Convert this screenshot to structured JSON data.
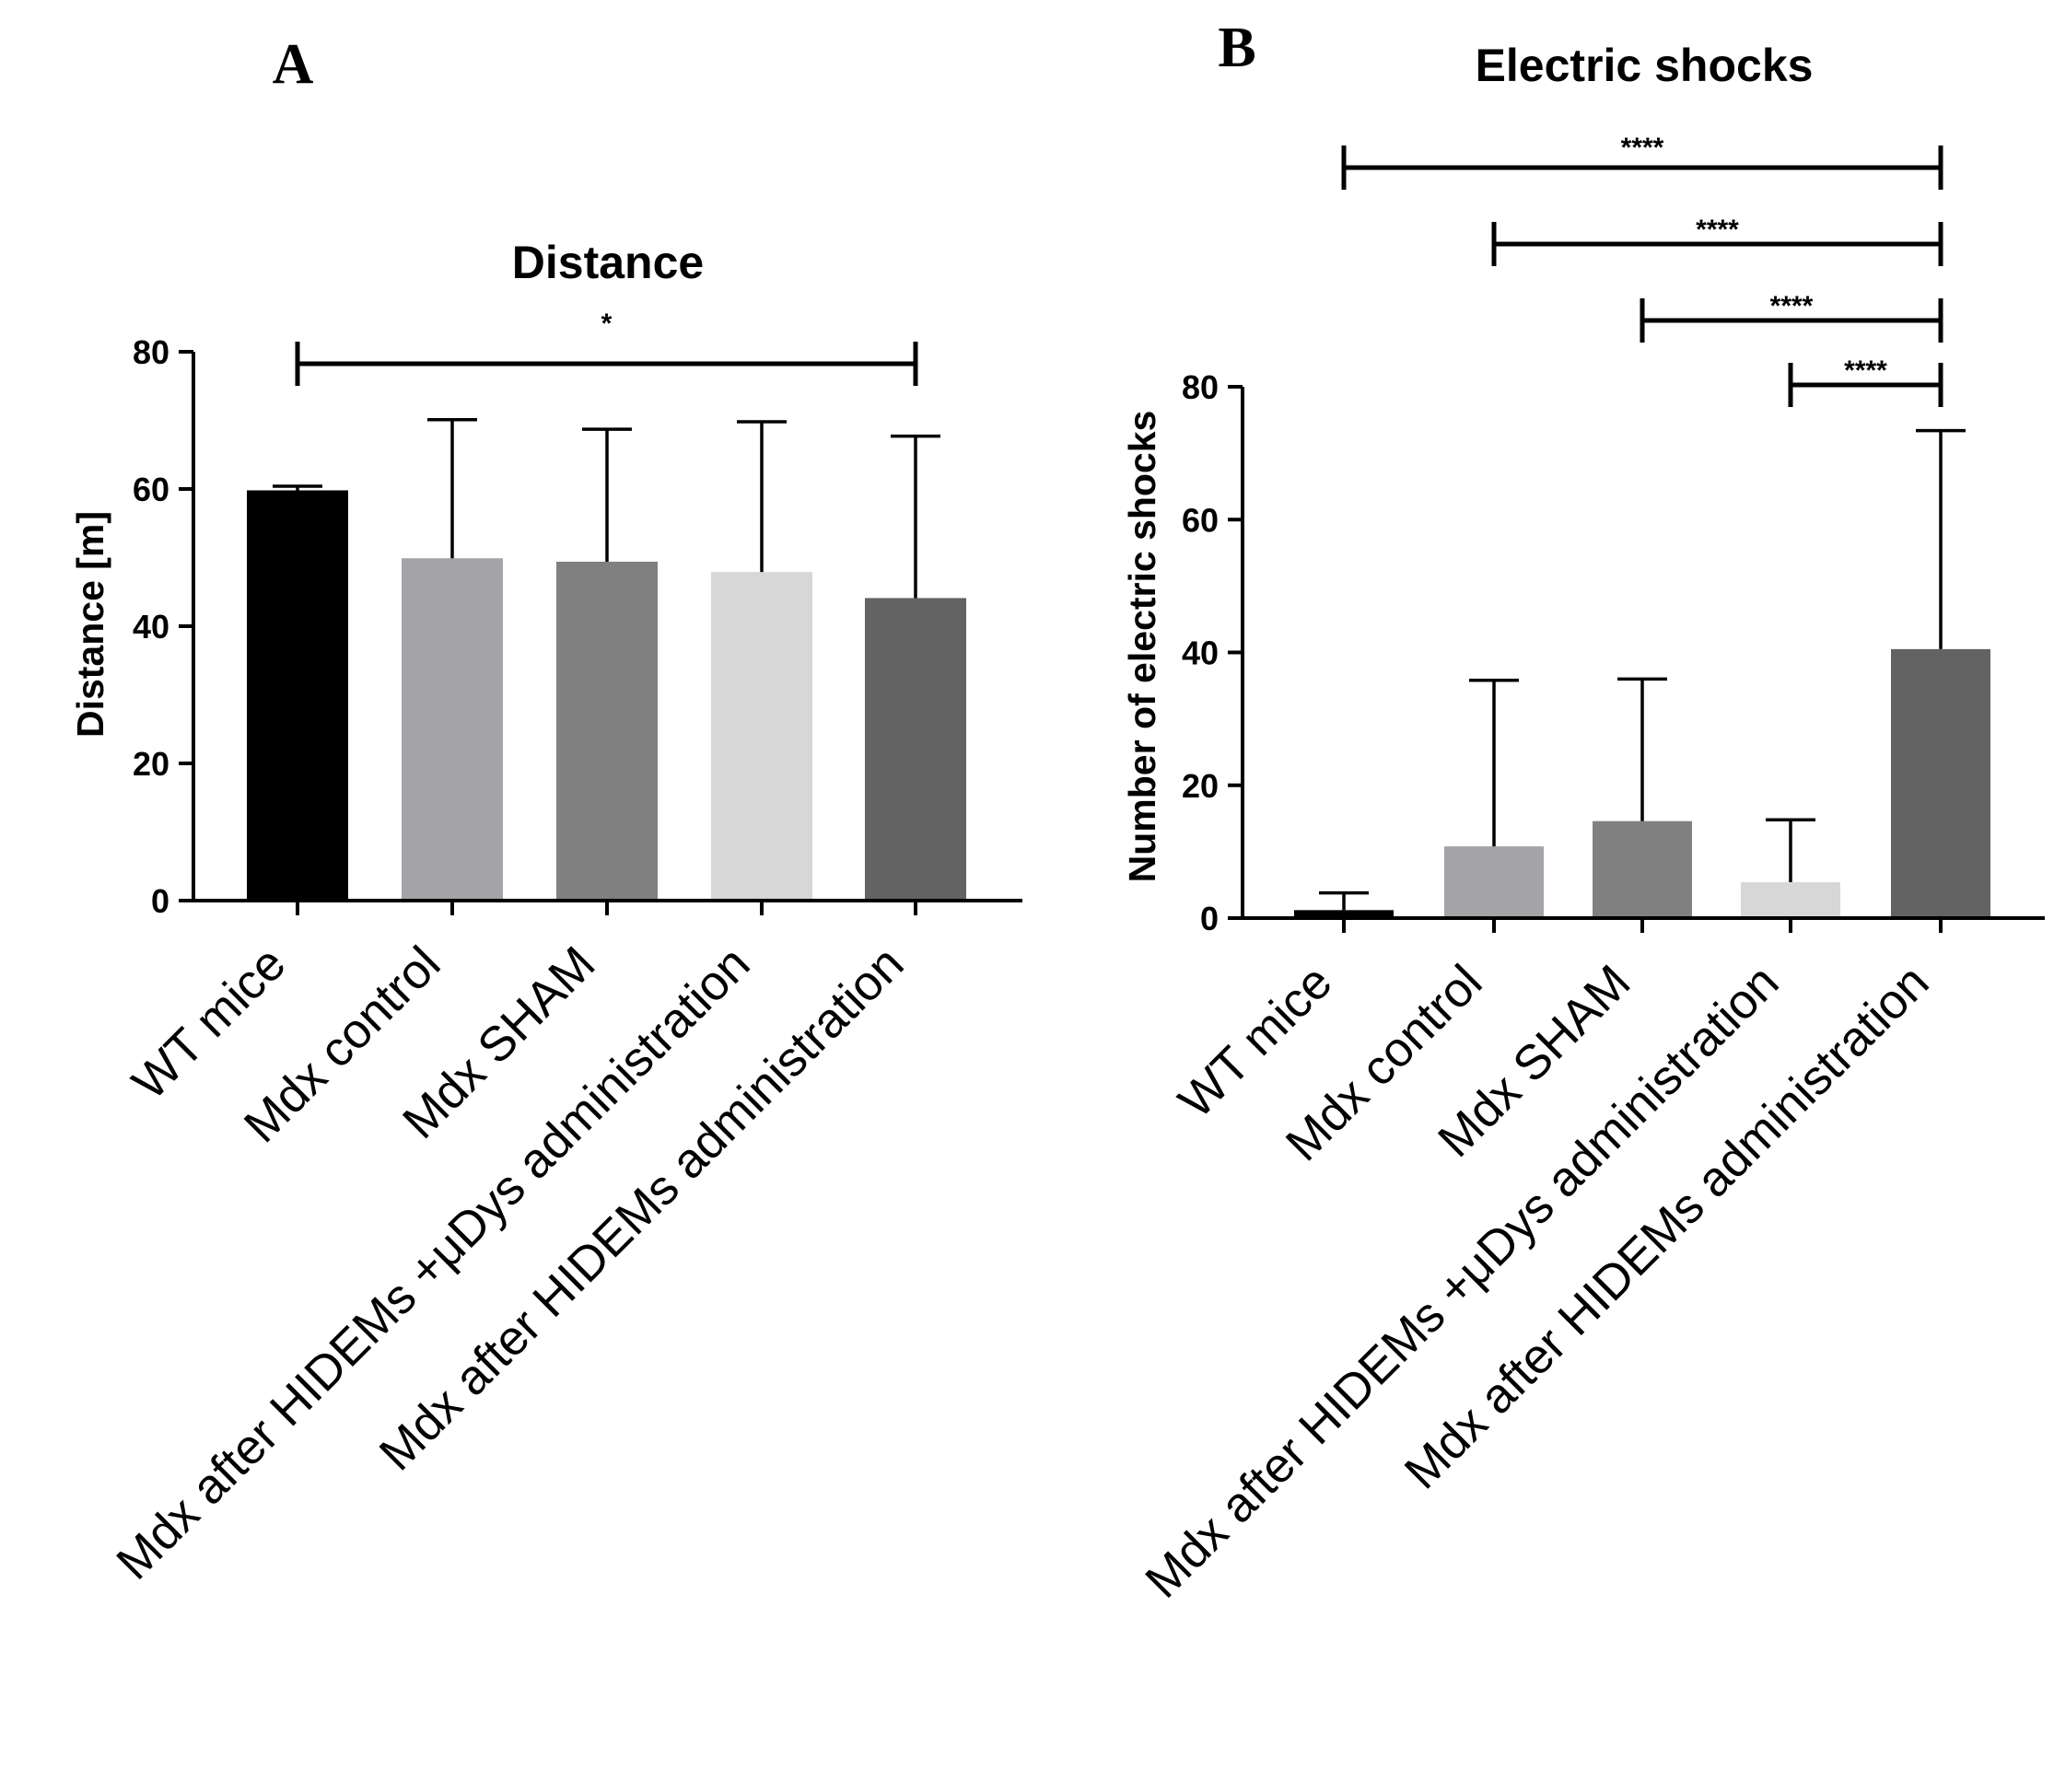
{
  "chart_data": [
    {
      "panel": "A",
      "type": "bar",
      "title": "Distance",
      "xlabel": "",
      "ylabel": "Distance [m]",
      "ylim": [
        0,
        80
      ],
      "yticks": [
        0,
        20,
        40,
        60,
        80
      ],
      "categories": [
        "WT mice",
        "Mdx control",
        "Mdx SHAM",
        "Mdx after HIDEMs +μDys administration",
        "Mdx after HIDEMs administration"
      ],
      "values": [
        59.8,
        49.9,
        49.4,
        47.9,
        44.1
      ],
      "errors": [
        0.6,
        20.2,
        19.3,
        21.9,
        23.6
      ],
      "colors": [
        "#000000",
        "#a4a4a8",
        "#808080",
        "#d7d7d7",
        "#636363"
      ],
      "significance": [
        {
          "from": 0,
          "to": 4,
          "label": "*"
        }
      ]
    },
    {
      "panel": "B",
      "type": "bar",
      "title": "Electric shocks",
      "xlabel": "",
      "ylabel": "Number of electric shocks",
      "ylim": [
        0,
        80
      ],
      "yticks": [
        0,
        20,
        40,
        60,
        80
      ],
      "categories": [
        "WT mice",
        "Mdx control",
        "Mdx SHAM",
        "Mdx after HIDEMs +μDys administration",
        "Mdx after HIDEMs administration"
      ],
      "values": [
        1.2,
        10.8,
        14.6,
        5.4,
        40.5
      ],
      "errors": [
        2.6,
        25.0,
        21.4,
        9.4,
        32.9
      ],
      "colors": [
        "#000000",
        "#a4a4a8",
        "#808080",
        "#d7d7d7",
        "#636363"
      ],
      "significance": [
        {
          "from": 0,
          "to": 4,
          "label": "****"
        },
        {
          "from": 1,
          "to": 4,
          "label": "****"
        },
        {
          "from": 2,
          "to": 4,
          "label": "****"
        },
        {
          "from": 3,
          "to": 4,
          "label": "****"
        }
      ]
    }
  ]
}
